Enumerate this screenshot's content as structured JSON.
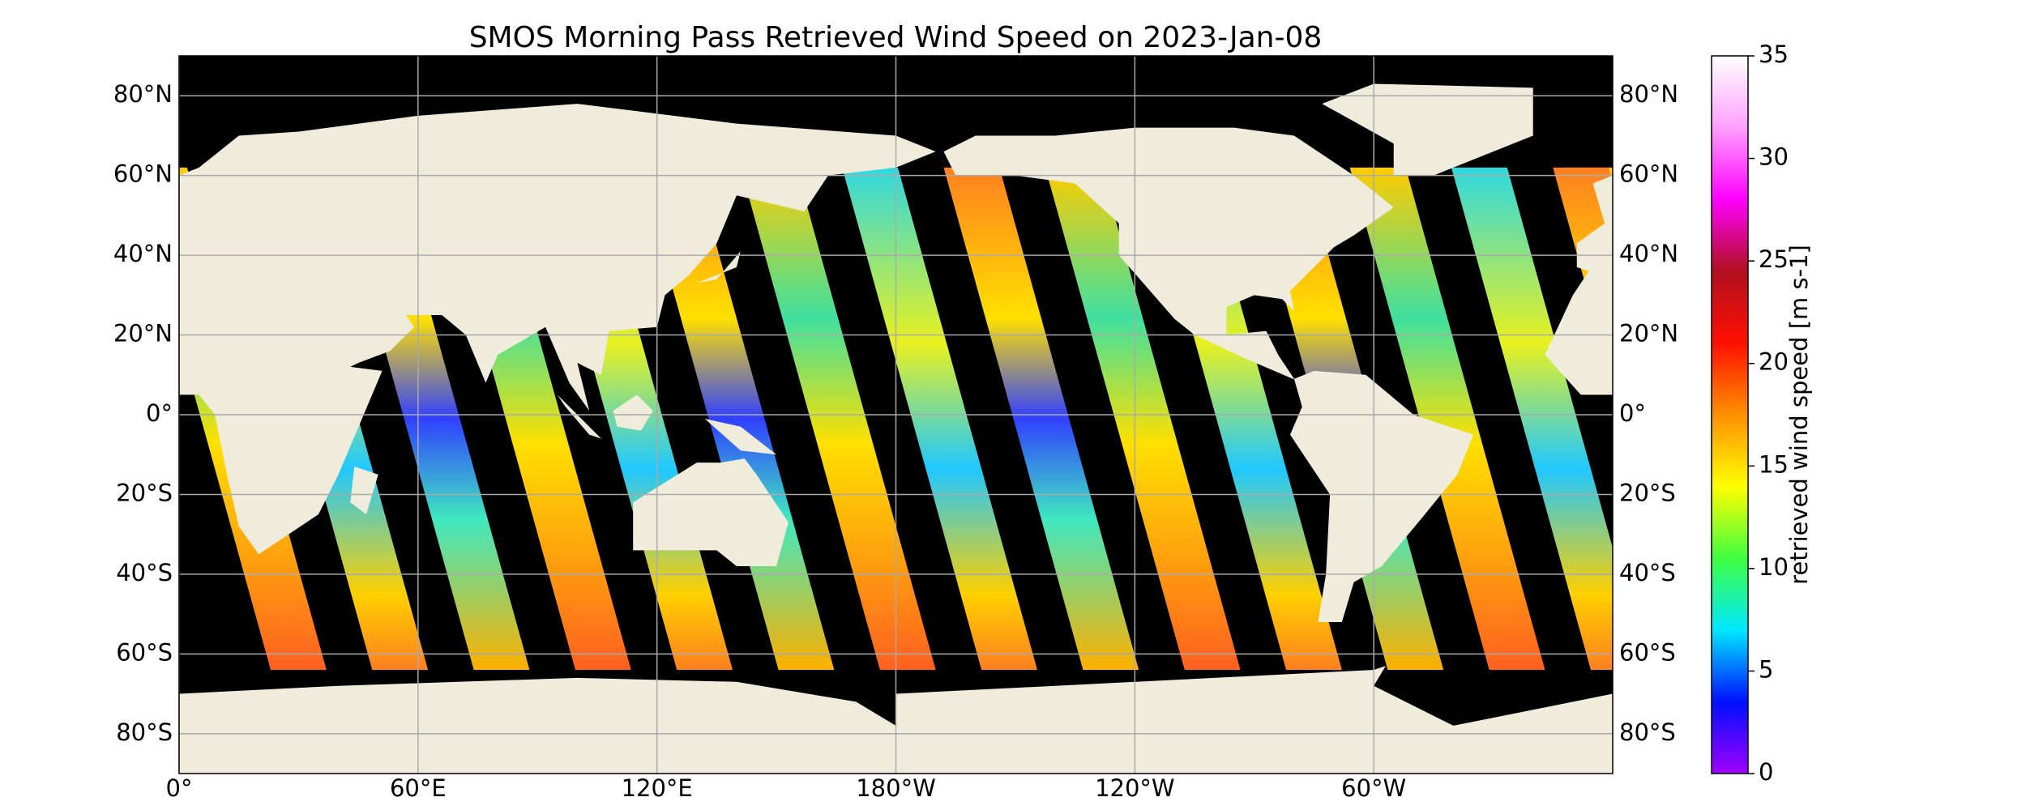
{
  "map": {
    "title": "SMOS Morning Pass Retrieved Wind Speed on 2023-Jan-08",
    "lonlim": [
      0,
      360
    ],
    "latlim": [
      -90,
      90
    ],
    "grid": true,
    "lon_ticks": [
      {
        "value": 0,
        "label": "0°"
      },
      {
        "value": 60,
        "label": "60°E"
      },
      {
        "value": 120,
        "label": "120°E"
      },
      {
        "value": 180,
        "label": "180°W"
      },
      {
        "value": 240,
        "label": "120°W"
      },
      {
        "value": 300,
        "label": "60°W"
      }
    ],
    "lat_ticks": [
      {
        "value": 80,
        "label": "80°N"
      },
      {
        "value": 60,
        "label": "60°N"
      },
      {
        "value": 40,
        "label": "40°N"
      },
      {
        "value": 20,
        "label": "20°N"
      },
      {
        "value": 0,
        "label": "0°"
      },
      {
        "value": -20,
        "label": "20°S"
      },
      {
        "value": -40,
        "label": "40°S"
      },
      {
        "value": -60,
        "label": "60°S"
      },
      {
        "value": -80,
        "label": "80°S"
      }
    ],
    "colorbar": {
      "label": "retrieved wind speed [m s-1]",
      "lim": [
        0,
        35
      ],
      "ticks": [
        0,
        5,
        10,
        15,
        20,
        25,
        30,
        35
      ],
      "colormap": [
        "#a000ff",
        "#0010ff",
        "#00e8ff",
        "#40ff40",
        "#ffff00",
        "#ff9000",
        "#ff1000",
        "#b01020",
        "#ff00ff",
        "#ffa0ff",
        "#ffffff"
      ]
    }
  }
}
